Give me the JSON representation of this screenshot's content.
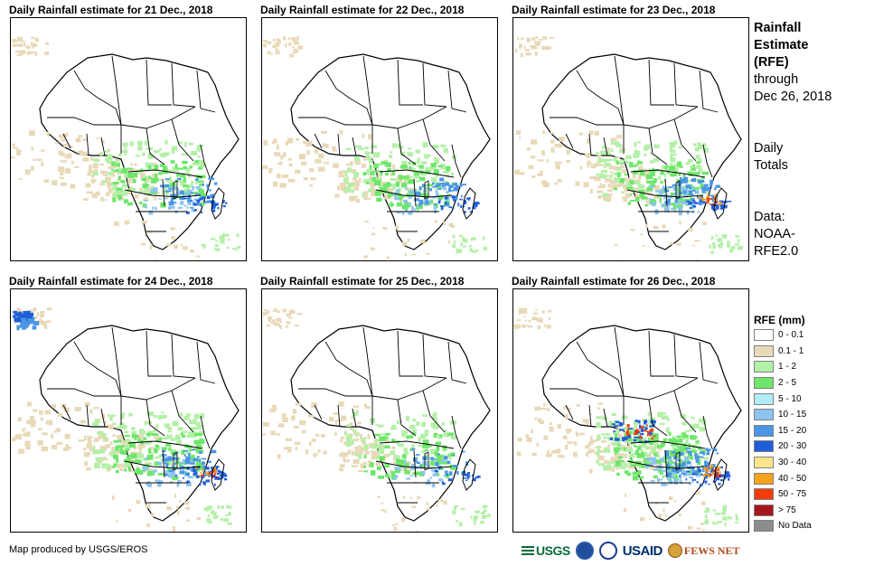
{
  "panels": [
    {
      "title": "Daily Rainfall estimate for 21 Dec., 2018",
      "rain_level": 2
    },
    {
      "title": "Daily Rainfall estimate for 22 Dec., 2018",
      "rain_level": 2
    },
    {
      "title": "Daily Rainfall estimate for 23 Dec., 2018",
      "rain_level": 3
    },
    {
      "title": "Daily Rainfall estimate for 24 Dec., 2018",
      "rain_level": 3
    },
    {
      "title": "Daily Rainfall estimate for 25 Dec., 2018",
      "rain_level": 1
    },
    {
      "title": "Daily Rainfall estimate for 26 Dec., 2018",
      "rain_level": 4
    }
  ],
  "side_info": {
    "heading_1": "Rainfall",
    "heading_2": "Estimate",
    "heading_3": "(RFE)",
    "through_1": "through",
    "through_2": "Dec 26, 2018",
    "daily_1": "Daily",
    "daily_2": "Totals",
    "data_1": "Data:",
    "data_2": "NOAA-",
    "data_3": "RFE2.0"
  },
  "legend": {
    "title": "RFE (mm)",
    "items": [
      {
        "label": "0 - 0.1",
        "color": "#ffffff"
      },
      {
        "label": "0.1 - 1",
        "color": "#e8d9b8"
      },
      {
        "label": "1 - 2",
        "color": "#b4f0a8"
      },
      {
        "label": "2 - 5",
        "color": "#6ee66b"
      },
      {
        "label": "5 - 10",
        "color": "#b2ecf5"
      },
      {
        "label": "10 - 15",
        "color": "#8ec4f0"
      },
      {
        "label": "15 - 20",
        "color": "#4b95e6"
      },
      {
        "label": "20 - 30",
        "color": "#1e5fd9"
      },
      {
        "label": "30 - 40",
        "color": "#fde58c"
      },
      {
        "label": "40 - 50",
        "color": "#f7a21b"
      },
      {
        "label": "50 - 75",
        "color": "#f23c0c"
      },
      {
        "label": "> 75",
        "color": "#a6171b"
      },
      {
        "label": "No Data",
        "color": "#8c8c8c"
      }
    ]
  },
  "credit": "Map produced by USGS/EROS",
  "logos": {
    "usgs": "USGS",
    "usaid": "USAID",
    "fews": "FEWS NET"
  }
}
